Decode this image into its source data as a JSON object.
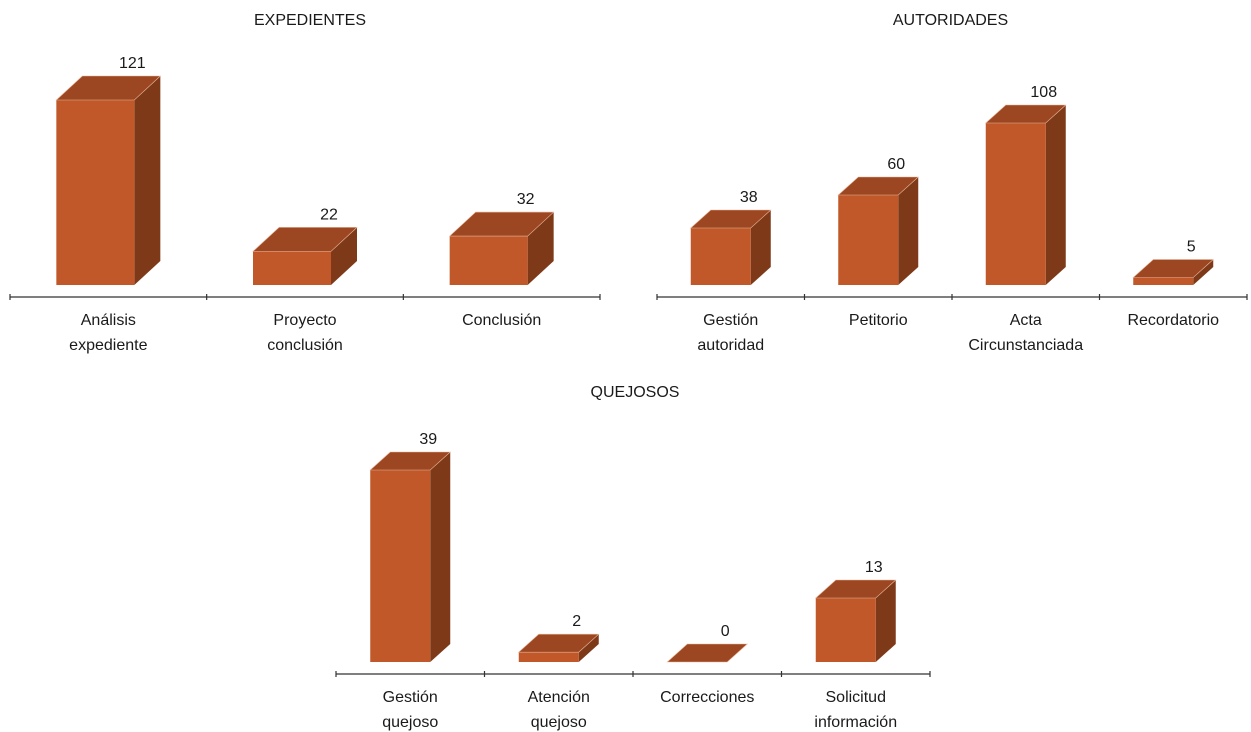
{
  "colors": {
    "front": "#C0582A",
    "side": "#7E3A18",
    "top": "#9C4721",
    "axis": "#333333"
  },
  "chart_data": [
    {
      "type": "bar",
      "title": "EXPEDIENTES",
      "categories": [
        [
          "Análisis",
          "expediente"
        ],
        [
          "Proyecto",
          "conclusión"
        ],
        [
          "Conclusión"
        ]
      ],
      "values": [
        121,
        22,
        32
      ],
      "ylim": [
        0,
        121
      ]
    },
    {
      "type": "bar",
      "title": "AUTORIDADES",
      "categories": [
        [
          "Gestión",
          "autoridad"
        ],
        [
          "Petitorio"
        ],
        [
          "Acta",
          "Circunstanciada"
        ],
        [
          "Recordatorio"
        ]
      ],
      "values": [
        38,
        60,
        108,
        5
      ],
      "ylim": [
        0,
        108
      ]
    },
    {
      "type": "bar",
      "title": "QUEJOSOS",
      "categories": [
        [
          "Gestión",
          "quejoso"
        ],
        [
          "Atención",
          "quejoso"
        ],
        [
          "Correcciones"
        ],
        [
          "Solicitud",
          "información"
        ]
      ],
      "values": [
        39,
        2,
        0,
        13
      ],
      "ylim": [
        0,
        39
      ]
    }
  ]
}
